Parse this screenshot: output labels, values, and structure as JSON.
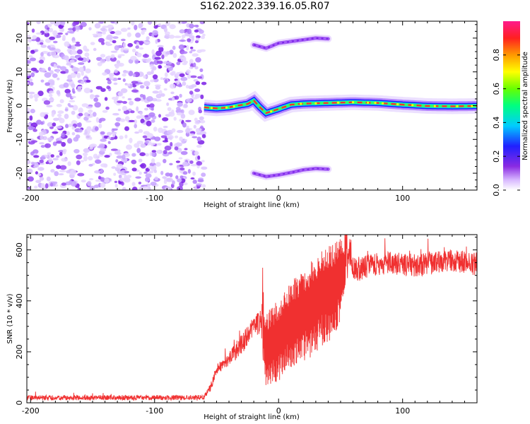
{
  "figure_title": "S162.2022.339.16.05.R07",
  "chart_data": [
    {
      "type": "heatmap",
      "title": "",
      "xlabel": "Height of straight line (km)",
      "ylabel": "Frequency (Hz)",
      "xlim": [
        -203,
        160
      ],
      "ylim": [
        -25,
        25
      ],
      "x_ticks": [
        -200,
        -100,
        0,
        100
      ],
      "y_ticks": [
        -20,
        -10,
        0,
        10,
        20
      ],
      "colorbar": {
        "label": "Normalized spectral amplitude",
        "range": [
          0,
          1
        ],
        "ticks": [
          0.0,
          0.2,
          0.4,
          0.6,
          0.8
        ]
      },
      "noise_region_x": [
        -203,
        -60
      ],
      "main_ridge": {
        "x": [
          -60,
          -50,
          -40,
          -30,
          -25,
          -20,
          -15,
          -10,
          0,
          10,
          20,
          40,
          60,
          80,
          100,
          120,
          140,
          160
        ],
        "y": [
          -0.5,
          -0.8,
          -0.5,
          0.2,
          0.5,
          1.5,
          -0.5,
          -2.2,
          -1.0,
          0.3,
          0.6,
          0.8,
          1.0,
          0.8,
          0.3,
          -0.1,
          -0.2,
          -0.1
        ]
      },
      "upper_sideband": {
        "x": [
          -20,
          -10,
          0,
          10,
          20,
          30,
          40
        ],
        "y": [
          18.0,
          17.0,
          18.5,
          19.0,
          19.5,
          20.0,
          19.8
        ]
      },
      "lower_sideband": {
        "x": [
          -20,
          -10,
          0,
          10,
          20,
          30,
          40
        ],
        "y": [
          -20.0,
          -21.0,
          -20.5,
          -19.8,
          -19.0,
          -18.6,
          -18.8
        ]
      }
    },
    {
      "type": "line",
      "title": "",
      "xlabel": "Height of straight line (km)",
      "ylabel": "SNR (10 * v/v)",
      "xlim": [
        -203,
        160
      ],
      "ylim": [
        0,
        660
      ],
      "x_ticks": [
        -200,
        -100,
        0,
        100
      ],
      "y_ticks": [
        0,
        200,
        400,
        600
      ],
      "color": "#f03030",
      "series": [
        {
          "x": [
            -203,
            -180,
            -160,
            -140,
            -120,
            -100,
            -80,
            -60,
            -55,
            -50,
            -45,
            -40,
            -35,
            -30,
            -25,
            -20,
            -15,
            -10,
            -5,
            0,
            5,
            10,
            15,
            20,
            25,
            30,
            35,
            40,
            45,
            50,
            55,
            58,
            60,
            65,
            70,
            80,
            90,
            100,
            110,
            120,
            130,
            140,
            150,
            160
          ],
          "y": [
            20,
            20,
            20,
            20,
            20,
            20,
            20,
            22,
            60,
            130,
            150,
            170,
            200,
            230,
            260,
            300,
            330,
            280,
            300,
            320,
            360,
            390,
            410,
            430,
            450,
            480,
            500,
            520,
            540,
            560,
            580,
            585,
            530,
            520,
            535,
            545,
            550,
            545,
            540,
            545,
            555,
            560,
            550,
            545
          ],
          "spread": [
            10,
            10,
            10,
            10,
            10,
            10,
            10,
            10,
            15,
            20,
            25,
            25,
            35,
            40,
            40,
            40,
            60,
            220,
            230,
            240,
            250,
            260,
            270,
            270,
            275,
            280,
            280,
            280,
            280,
            240,
            100,
            60,
            45,
            45,
            45,
            45,
            45,
            45,
            45,
            45,
            45,
            45,
            45,
            45
          ]
        }
      ]
    }
  ]
}
